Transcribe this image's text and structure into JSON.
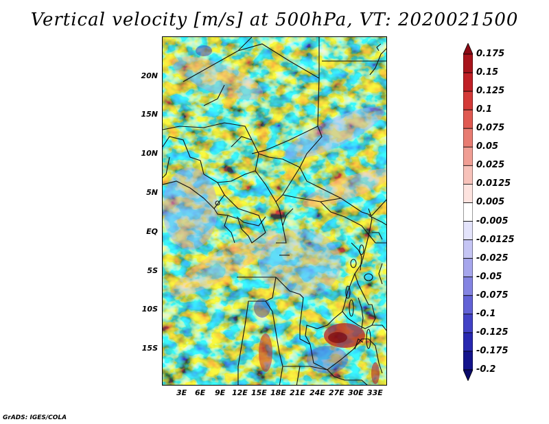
{
  "title": "Vertical velocity [m/s] at 500hPa, VT: 2020021500",
  "footer": "GrADS: IGES/COLA",
  "map": {
    "variable": "Vertical velocity",
    "units": "m/s",
    "level": "500hPa",
    "valid_time": "2020021500",
    "lat_labels": [
      "20N",
      "15N",
      "10N",
      "5N",
      "EQ",
      "5S",
      "10S",
      "15S"
    ],
    "lon_labels": [
      "3E",
      "6E",
      "9E",
      "12E",
      "15E",
      "18E",
      "21E",
      "24E",
      "27E",
      "30E",
      "33E"
    ]
  },
  "colorbar": {
    "labels": [
      "0.175",
      "0.15",
      "0.125",
      "0.1",
      "0.075",
      "0.05",
      "0.025",
      "0.0125",
      "0.005",
      "-0.005",
      "-0.0125",
      "-0.025",
      "-0.05",
      "-0.075",
      "-0.1",
      "-0.125",
      "-0.175",
      "-0.2"
    ],
    "colors": [
      "#8b0a14",
      "#a8141c",
      "#c02026",
      "#d43a38",
      "#e05a52",
      "#e87c72",
      "#f09e94",
      "#f7c2ba",
      "#fde3df",
      "#ffffff",
      "#e3e3fb",
      "#c5c5f4",
      "#a6a6ec",
      "#8484e2",
      "#6262d6",
      "#4242c6",
      "#2828b0",
      "#14148c",
      "#0a0a6a"
    ]
  }
}
